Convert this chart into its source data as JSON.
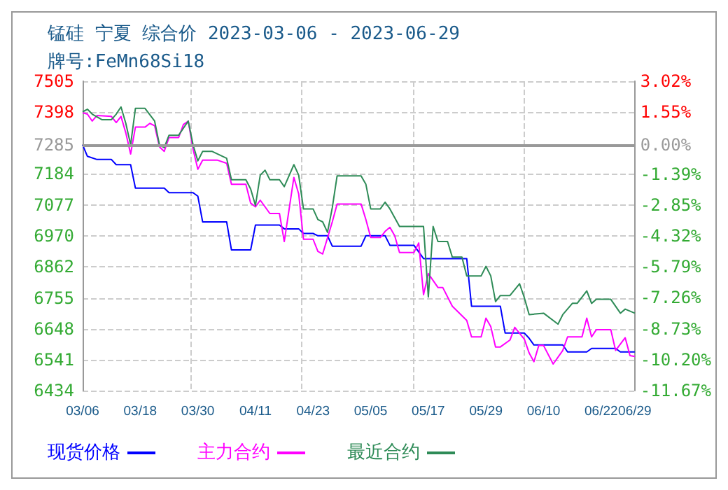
{
  "chart_data": {
    "type": "line",
    "title": "锰硅 宁夏 综合价 2023-03-06 - 2023-06-29",
    "subtitle": "牌号:FeMn68Si18",
    "xlim": [
      "2023-03-06",
      "2023-06-29"
    ],
    "xticks": [
      {
        "value": "2023-03-06",
        "label": "03/06"
      },
      {
        "value": "2023-03-18",
        "label": "03/18"
      },
      {
        "value": "2023-03-30",
        "label": "03/30"
      },
      {
        "value": "2023-04-11",
        "label": "04/11"
      },
      {
        "value": "2023-04-23",
        "label": "04/23"
      },
      {
        "value": "2023-05-05",
        "label": "05/05"
      },
      {
        "value": "2023-05-17",
        "label": "05/17"
      },
      {
        "value": "2023-05-29",
        "label": "05/29"
      },
      {
        "value": "2023-06-10",
        "label": "06/10"
      },
      {
        "value": "2023-06-22",
        "label": "06/22"
      },
      {
        "value": "2023-06-29",
        "label": "06/29"
      }
    ],
    "ylim": [
      6434,
      7505
    ],
    "yticks": [
      6434,
      6541,
      6648,
      6755,
      6862,
      6970,
      7077,
      7184,
      7285,
      7398,
      7505
    ],
    "y2lim": [
      -11.67,
      3.02
    ],
    "y2ticks": [
      {
        "value": -11.67,
        "label": "-11.67%"
      },
      {
        "value": -10.2,
        "label": "-10.20%"
      },
      {
        "value": -8.73,
        "label": "-8.73%"
      },
      {
        "value": -7.26,
        "label": "-7.26%"
      },
      {
        "value": -5.79,
        "label": "-5.79%"
      },
      {
        "value": -4.32,
        "label": "-4.32%"
      },
      {
        "value": -2.85,
        "label": "-2.85%"
      },
      {
        "value": -1.39,
        "label": "-1.39%"
      },
      {
        "value": 0,
        "label": "0.00%"
      },
      {
        "value": 1.55,
        "label": "1.55%"
      },
      {
        "value": 3.02,
        "label": "3.02%"
      }
    ],
    "ref_lines": [
      {
        "axis": "y",
        "value": 7285,
        "color": "#999999"
      }
    ],
    "grid": true,
    "legend": "bottom",
    "line_style": "solid",
    "marker": "none",
    "series": [
      {
        "name": "现货价格",
        "color": "#0000ff",
        "x": [
          "2023-03-06",
          "2023-03-07",
          "2023-03-09",
          "2023-03-12",
          "2023-03-13",
          "2023-03-16",
          "2023-03-17",
          "2023-03-23",
          "2023-03-24",
          "2023-03-29",
          "2023-03-30",
          "2023-03-31",
          "2023-04-05",
          "2023-04-06",
          "2023-04-10",
          "2023-04-11",
          "2023-04-16",
          "2023-04-17",
          "2023-04-20",
          "2023-04-21",
          "2023-04-23",
          "2023-04-24",
          "2023-04-26",
          "2023-04-27",
          "2023-05-03",
          "2023-05-04",
          "2023-05-08",
          "2023-05-09",
          "2023-05-14",
          "2023-05-16",
          "2023-05-25",
          "2023-05-26",
          "2023-06-01",
          "2023-06-02",
          "2023-06-06",
          "2023-06-07",
          "2023-06-08",
          "2023-06-14",
          "2023-06-15",
          "2023-06-19",
          "2023-06-20",
          "2023-06-25",
          "2023-06-26",
          "2023-06-29"
        ],
        "values": [
          7285,
          7245,
          7234,
          7234,
          7216,
          7216,
          7135,
          7135,
          7119,
          7119,
          7107,
          7018,
          7018,
          6921,
          6921,
          7007,
          7007,
          6994,
          6994,
          6978,
          6978,
          6970,
          6970,
          6934,
          6934,
          6970,
          6970,
          6937,
          6937,
          6891,
          6891,
          6726,
          6726,
          6633,
          6633,
          6615,
          6592,
          6592,
          6568,
          6568,
          6580,
          6580,
          6568,
          6568
        ]
      },
      {
        "name": "主力合约",
        "color": "#ff00ff",
        "x": [
          "2023-03-06",
          "2023-03-07",
          "2023-03-08",
          "2023-03-09",
          "2023-03-12",
          "2023-03-13",
          "2023-03-14",
          "2023-03-15",
          "2023-03-16",
          "2023-03-17",
          "2023-03-19",
          "2023-03-20",
          "2023-03-21",
          "2023-03-22",
          "2023-03-23",
          "2023-03-24",
          "2023-03-26",
          "2023-03-27",
          "2023-03-28",
          "2023-03-29",
          "2023-03-30",
          "2023-03-31",
          "2023-04-03",
          "2023-04-05",
          "2023-04-06",
          "2023-04-09",
          "2023-04-10",
          "2023-04-11",
          "2023-04-12",
          "2023-04-14",
          "2023-04-16",
          "2023-04-17",
          "2023-04-19",
          "2023-04-20",
          "2023-04-21",
          "2023-04-23",
          "2023-04-24",
          "2023-04-25",
          "2023-04-27",
          "2023-04-28",
          "2023-05-03",
          "2023-05-04",
          "2023-05-05",
          "2023-05-07",
          "2023-05-08",
          "2023-05-09",
          "2023-05-10",
          "2023-05-11",
          "2023-05-14",
          "2023-05-15",
          "2023-05-16",
          "2023-05-17",
          "2023-05-19",
          "2023-05-20",
          "2023-05-22",
          "2023-05-25",
          "2023-05-26",
          "2023-05-28",
          "2023-05-29",
          "2023-05-30",
          "2023-05-31",
          "2023-06-01",
          "2023-06-03",
          "2023-06-04",
          "2023-06-06",
          "2023-06-07",
          "2023-06-08",
          "2023-06-09",
          "2023-06-10",
          "2023-06-12",
          "2023-06-14",
          "2023-06-15",
          "2023-06-18",
          "2023-06-19",
          "2023-06-20",
          "2023-06-21",
          "2023-06-24",
          "2023-06-25",
          "2023-06-27",
          "2023-06-28",
          "2023-06-29"
        ],
        "values": [
          7396,
          7391,
          7367,
          7386,
          7383,
          7362,
          7383,
          7326,
          7253,
          7346,
          7346,
          7359,
          7351,
          7278,
          7262,
          7310,
          7310,
          7355,
          7367,
          7270,
          7200,
          7232,
          7232,
          7221,
          7148,
          7148,
          7083,
          7070,
          7093,
          7047,
          7047,
          6950,
          7172,
          7115,
          6958,
          6958,
          6916,
          6907,
          7018,
          7080,
          7080,
          7026,
          6964,
          6964,
          6985,
          6999,
          6970,
          6912,
          6912,
          6945,
          6766,
          6839,
          6791,
          6791,
          6726,
          6677,
          6620,
          6620,
          6685,
          6656,
          6585,
          6585,
          6609,
          6653,
          6612,
          6564,
          6534,
          6590,
          6590,
          6526,
          6573,
          6620,
          6620,
          6685,
          6620,
          6645,
          6645,
          6573,
          6617,
          6555,
          6552
        ]
      },
      {
        "name": "最近合约",
        "color": "#2e8b57",
        "x": [
          "2023-03-06",
          "2023-03-07",
          "2023-03-08",
          "2023-03-10",
          "2023-03-12",
          "2023-03-13",
          "2023-03-14",
          "2023-03-15",
          "2023-03-16",
          "2023-03-17",
          "2023-03-19",
          "2023-03-21",
          "2023-03-22",
          "2023-03-23",
          "2023-03-24",
          "2023-03-26",
          "2023-03-28",
          "2023-03-29",
          "2023-03-30",
          "2023-03-31",
          "2023-04-02",
          "2023-04-05",
          "2023-04-06",
          "2023-04-09",
          "2023-04-10",
          "2023-04-11",
          "2023-04-12",
          "2023-04-13",
          "2023-04-14",
          "2023-04-16",
          "2023-04-17",
          "2023-04-19",
          "2023-04-20",
          "2023-04-21",
          "2023-04-23",
          "2023-04-24",
          "2023-04-25",
          "2023-04-26",
          "2023-04-27",
          "2023-04-28",
          "2023-05-03",
          "2023-05-04",
          "2023-05-05",
          "2023-05-07",
          "2023-05-08",
          "2023-05-09",
          "2023-05-11",
          "2023-05-16",
          "2023-05-17",
          "2023-05-18",
          "2023-05-19",
          "2023-05-21",
          "2023-05-22",
          "2023-05-24",
          "2023-05-25",
          "2023-05-28",
          "2023-05-29",
          "2023-05-30",
          "2023-05-31",
          "2023-06-01",
          "2023-06-03",
          "2023-06-05",
          "2023-06-06",
          "2023-06-07",
          "2023-06-10",
          "2023-06-13",
          "2023-06-14",
          "2023-06-16",
          "2023-06-17",
          "2023-06-19",
          "2023-06-20",
          "2023-06-21",
          "2023-06-24",
          "2023-06-26",
          "2023-06-27",
          "2023-06-29"
        ],
        "values": [
          7399,
          7408,
          7391,
          7372,
          7372,
          7391,
          7416,
          7359,
          7285,
          7411,
          7411,
          7367,
          7285,
          7275,
          7318,
          7318,
          7367,
          7285,
          7229,
          7262,
          7262,
          7238,
          7164,
          7164,
          7132,
          7075,
          7180,
          7197,
          7164,
          7164,
          7140,
          7216,
          7180,
          7063,
          7063,
          7026,
          7018,
          6982,
          7067,
          7177,
          7177,
          7148,
          7063,
          7063,
          7086,
          7063,
          7002,
          7002,
          6758,
          7002,
          6950,
          6950,
          6896,
          6896,
          6831,
          6831,
          6864,
          6831,
          6742,
          6763,
          6763,
          6804,
          6755,
          6697,
          6702,
          6664,
          6697,
          6736,
          6736,
          6779,
          6736,
          6750,
          6750,
          6702,
          6716,
          6702
        ]
      }
    ]
  }
}
